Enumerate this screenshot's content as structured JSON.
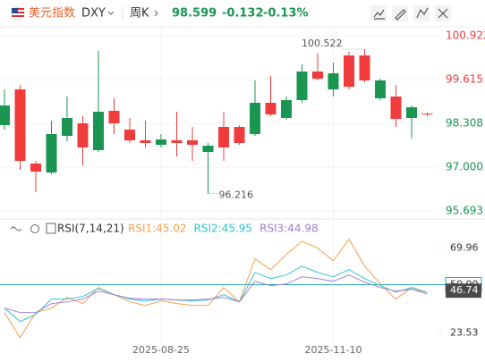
{
  "header": {
    "name": "美元指数",
    "symbol": "DXY",
    "period": "周K",
    "price": 98.599,
    "change": -0.132,
    "change_pct": "-0.13%"
  },
  "chart_data": [
    {
      "type": "candlestick",
      "categories": [
        null,
        null,
        null,
        null,
        null,
        null,
        null,
        null,
        null,
        null,
        "2025-08-25",
        null,
        null,
        null,
        null,
        null,
        null,
        null,
        null,
        null,
        null,
        "2025-11-10",
        null,
        null,
        null,
        null,
        null,
        null
      ],
      "open": [
        98.842,
        97.189,
        96.869,
        97.989,
        98.469,
        97.589,
        98.655,
        98.309,
        97.802,
        97.722,
        97.829,
        97.722,
        97.669,
        97.642,
        97.589,
        97.722,
        98.922,
        98.575,
        99.002,
        99.855,
        99.642,
        99.802,
        99.402,
        99.589,
        99.589,
        98.442,
        98.789,
        98.575
      ],
      "high": [
        99.322,
        99.455,
        97.189,
        98.389,
        99.109,
        98.522,
        100.469,
        99.055,
        98.469,
        98.389,
        97.989,
        98.655,
        98.202,
        97.722,
        98.655,
        98.255,
        99.589,
        99.722,
        99.109,
        100.069,
        100.399,
        100.122,
        100.442,
        100.522,
        99.642,
        99.455,
        98.842,
        98.629
      ],
      "low": [
        98.122,
        96.922,
        96.255,
        96.789,
        97.775,
        97.055,
        97.455,
        97.989,
        97.722,
        97.589,
        97.589,
        97.322,
        97.189,
        96.216,
        97.189,
        97.669,
        97.935,
        98.522,
        98.42,
        98.922,
        99.589,
        99.109,
        99.322,
        99.535,
        99.002,
        98.202,
        97.855,
        98.522
      ],
      "close": [
        98.255,
        99.322,
        97.109,
        96.842,
        97.935,
        98.309,
        97.509,
        98.682,
        98.122,
        97.802,
        97.669,
        97.802,
        97.802,
        97.455,
        98.202,
        98.202,
        97.989,
        98.922,
        98.469,
        99.002,
        99.855,
        99.322,
        100.335,
        100.335,
        99.055,
        99.109,
        98.469,
        98.599
      ],
      "up_color": "#f03c3c",
      "down_color": "#1a9652",
      "ylim": [
        95.455,
        101.189
      ],
      "yticks": [
        100.922,
        99.615,
        98.308,
        {
          "value": 97,
          "label": "97.000"
        },
        95.693
      ],
      "grid": true
    },
    {
      "type": "line",
      "title": "RSI(7,14,21)",
      "series": [
        {
          "name": "RSI1:45.02",
          "color": "#f5a04a",
          "values": [
            34.77,
            21.08,
            34.77,
            37.21,
            43.08,
            39.66,
            48.45,
            44.54,
            40.63,
            38.68,
            41.12,
            39.66,
            38.68,
            38.68,
            48.45,
            40.63,
            64.09,
            58.23,
            66.54,
            73.87,
            69.96,
            63.12,
            74.85,
            60.19,
            50.41,
            42.1,
            48.45,
            45.02
          ]
        },
        {
          "name": "RSI2:45.95",
          "color": "#2ec4cf",
          "values": [
            37.21,
            29.88,
            33.79,
            42.1,
            42.1,
            43.57,
            47.97,
            44.54,
            42.1,
            41.12,
            42.1,
            41.61,
            41.12,
            41.61,
            44.54,
            40.63,
            56.76,
            53.34,
            55.3,
            60.19,
            56.76,
            54.32,
            58.23,
            53.34,
            49.43,
            46.01,
            48.45,
            45.95
          ]
        },
        {
          "name": "RSI3:44.98",
          "color": "#a27fd0",
          "values": [
            37.21,
            34.77,
            34.77,
            39.66,
            40.63,
            42.1,
            46.5,
            44.54,
            42.59,
            42.1,
            42.1,
            41.61,
            41.61,
            42.1,
            43.08,
            40.63,
            51.88,
            49.43,
            50.41,
            54.32,
            53.34,
            51.88,
            55.3,
            51.39,
            48.45,
            46.5,
            47.48,
            44.98
          ]
        }
      ],
      "ylim": [
        17.5,
        83.5
      ],
      "yticks": [
        69.96,
        {
          "value": 50,
          "label": "50.00"
        },
        23.53
      ],
      "reference_line": {
        "value": 50,
        "color": "#2aa7b8"
      },
      "marker": {
        "value": 46.74,
        "label": "46.74"
      }
    }
  ]
}
